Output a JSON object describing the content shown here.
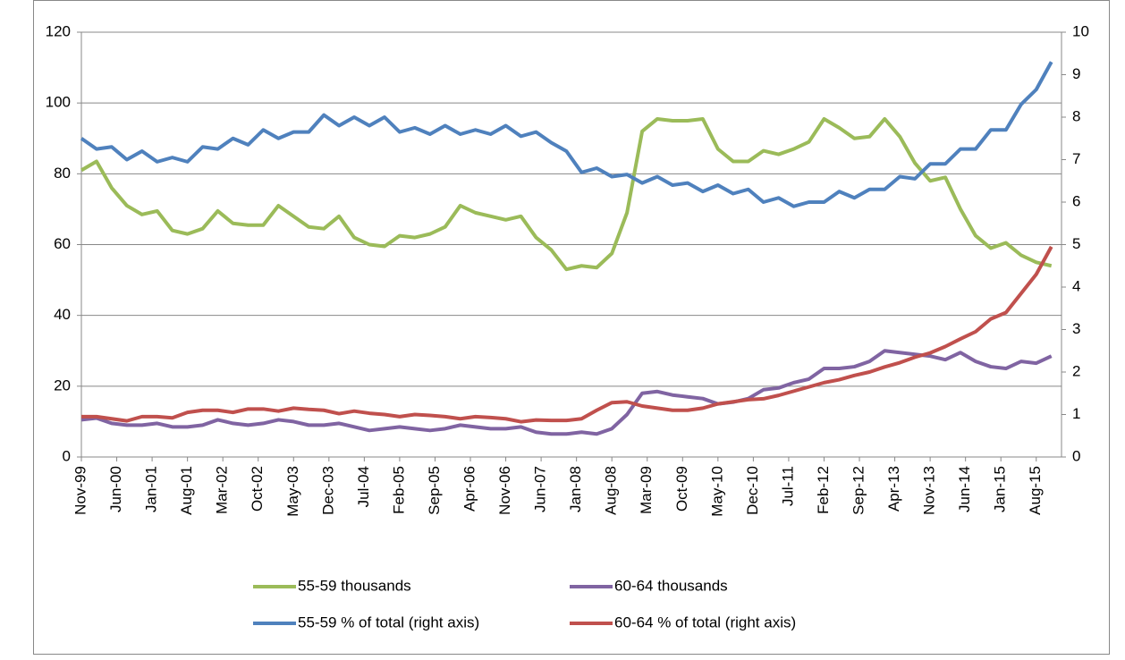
{
  "chart_data": {
    "type": "line",
    "x": [
      0,
      3,
      6,
      9,
      12,
      15,
      18,
      21,
      24,
      27,
      30,
      33,
      36,
      39,
      42,
      45,
      48,
      51,
      54,
      57,
      60,
      63,
      66,
      69,
      72,
      75,
      78,
      81,
      84,
      87,
      90,
      93,
      96,
      99,
      102,
      105,
      108,
      111,
      114,
      117,
      120,
      123,
      126,
      129,
      132,
      135,
      138,
      141,
      144,
      147,
      150,
      153,
      156,
      159,
      162,
      165,
      168,
      171,
      174,
      177,
      180,
      183,
      186,
      189,
      192
    ],
    "xlim": [
      0,
      194
    ],
    "xticks": [
      {
        "value": 0,
        "label": "Nov-99"
      },
      {
        "value": 7,
        "label": "Jun-00"
      },
      {
        "value": 14,
        "label": "Jan-01"
      },
      {
        "value": 21,
        "label": "Aug-01"
      },
      {
        "value": 28,
        "label": "Mar-02"
      },
      {
        "value": 35,
        "label": "Oct-02"
      },
      {
        "value": 42,
        "label": "May-03"
      },
      {
        "value": 49,
        "label": "Dec-03"
      },
      {
        "value": 56,
        "label": "Jul-04"
      },
      {
        "value": 63,
        "label": "Feb-05"
      },
      {
        "value": 70,
        "label": "Sep-05"
      },
      {
        "value": 77,
        "label": "Apr-06"
      },
      {
        "value": 84,
        "label": "Nov-06"
      },
      {
        "value": 91,
        "label": "Jun-07"
      },
      {
        "value": 98,
        "label": "Jan-08"
      },
      {
        "value": 105,
        "label": "Aug-08"
      },
      {
        "value": 112,
        "label": "Mar-09"
      },
      {
        "value": 119,
        "label": "Oct-09"
      },
      {
        "value": 126,
        "label": "May-10"
      },
      {
        "value": 133,
        "label": "Dec-10"
      },
      {
        "value": 140,
        "label": "Jul-11"
      },
      {
        "value": 147,
        "label": "Feb-12"
      },
      {
        "value": 154,
        "label": "Sep-12"
      },
      {
        "value": 161,
        "label": "Apr-13"
      },
      {
        "value": 168,
        "label": "Nov-13"
      },
      {
        "value": 175,
        "label": "Jun-14"
      },
      {
        "value": 182,
        "label": "Jan-15"
      },
      {
        "value": 189,
        "label": "Aug-15"
      }
    ],
    "ylim": [
      0,
      120
    ],
    "yticks": [
      0,
      20,
      40,
      60,
      80,
      100,
      120
    ],
    "y2lim": [
      0,
      10
    ],
    "y2ticks": [
      0,
      1,
      2,
      3,
      4,
      5,
      6,
      7,
      8,
      9,
      10
    ],
    "grid": true,
    "legend": "bottom",
    "series": [
      {
        "name": "55-59 thousands",
        "color": "#9bbb59",
        "values": [
          81,
          83.5,
          76,
          71,
          68.5,
          69.5,
          64,
          63,
          64.5,
          69.5,
          66,
          65.5,
          65.5,
          71,
          68,
          65,
          64.5,
          68,
          62,
          60,
          59.5,
          62.5,
          62,
          63,
          65,
          71,
          69,
          68,
          67,
          68,
          62,
          58.5,
          53,
          54,
          53.5,
          57.5,
          69,
          92,
          95.5,
          95,
          95,
          95.5,
          87,
          83.5,
          83.5,
          86.5,
          85.5,
          87,
          89,
          95.5,
          93,
          90,
          90.5,
          95.5,
          90.5,
          83,
          78,
          79,
          70,
          62.5,
          59,
          60.5,
          57,
          55,
          54
        ]
      },
      {
        "name": "60-64 thousands",
        "color": "#8064a2",
        "values": [
          10.5,
          11,
          9.5,
          9,
          9,
          9.5,
          8.5,
          8.5,
          9,
          10.5,
          9.5,
          9,
          9.5,
          10.5,
          10,
          9,
          9,
          9.5,
          8.5,
          7.5,
          8,
          8.5,
          8,
          7.5,
          8,
          9,
          8.5,
          8,
          8,
          8.5,
          7,
          6.5,
          6.5,
          7,
          6.5,
          8,
          12,
          18,
          18.5,
          17.5,
          17,
          16.5,
          15,
          15.5,
          16.5,
          19,
          19.5,
          21,
          22,
          25,
          25,
          25.5,
          27,
          30,
          29.5,
          29,
          28.5,
          27.5,
          29.5,
          27,
          25.5,
          25,
          27,
          26.5,
          28.5
        ]
      },
      {
        "name": "55-59 % of total (right axis)",
        "color": "#4f81bd",
        "axis": "y2",
        "values": [
          7.5,
          7.25,
          7.3,
          7.0,
          7.2,
          6.95,
          7.05,
          6.95,
          7.3,
          7.25,
          7.5,
          7.35,
          7.7,
          7.5,
          7.65,
          7.65,
          8.05,
          7.8,
          8.0,
          7.8,
          8.0,
          7.65,
          7.75,
          7.6,
          7.8,
          7.6,
          7.7,
          7.6,
          7.8,
          7.55,
          7.65,
          7.4,
          7.2,
          6.7,
          6.8,
          6.6,
          6.65,
          6.45,
          6.6,
          6.4,
          6.45,
          6.25,
          6.4,
          6.2,
          6.3,
          6.0,
          6.1,
          5.9,
          6.0,
          6.0,
          6.25,
          6.1,
          6.3,
          6.3,
          6.6,
          6.55,
          6.9,
          6.9,
          7.25,
          7.25,
          7.7,
          7.7,
          8.3,
          8.65,
          9.3
        ]
      },
      {
        "name": "60-64 % of total (right axis)",
        "color": "#c0504d",
        "axis": "y2",
        "values": [
          0.95,
          0.95,
          0.9,
          0.85,
          0.95,
          0.95,
          0.92,
          1.05,
          1.1,
          1.1,
          1.05,
          1.13,
          1.13,
          1.08,
          1.15,
          1.12,
          1.1,
          1.02,
          1.08,
          1.03,
          1.0,
          0.95,
          1.0,
          0.98,
          0.95,
          0.9,
          0.95,
          0.93,
          0.9,
          0.83,
          0.87,
          0.86,
          0.86,
          0.9,
          1.1,
          1.28,
          1.3,
          1.2,
          1.15,
          1.1,
          1.1,
          1.15,
          1.25,
          1.3,
          1.35,
          1.37,
          1.45,
          1.55,
          1.65,
          1.75,
          1.82,
          1.92,
          2.0,
          2.12,
          2.22,
          2.35,
          2.45,
          2.6,
          2.78,
          2.95,
          3.25,
          3.4,
          3.85,
          4.3,
          4.95
        ]
      }
    ]
  }
}
